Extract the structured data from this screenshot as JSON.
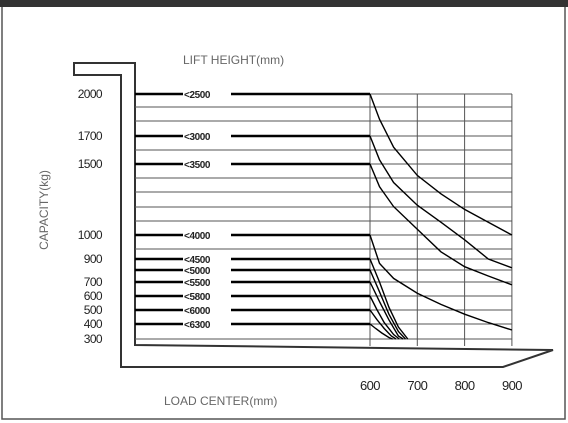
{
  "chart_data": {
    "type": "line",
    "title": "LIFT HEIGHT(mm)",
    "xlabel": "LOAD CENTER(mm)",
    "ylabel": "CAPACITY(kg)",
    "x_ticks": [
      "600",
      "700",
      "800",
      "900"
    ],
    "xlim": [
      600,
      900
    ],
    "y_ticks": [
      "2000",
      "1700",
      "1500",
      "1000",
      "900",
      "700",
      "600",
      "500",
      "400",
      "300"
    ],
    "ylim": [
      300,
      2000
    ],
    "grid": true,
    "series": [
      {
        "name": "<2500",
        "capacity": 2000,
        "x": [
          600,
          620,
          650,
          700,
          750,
          800,
          850,
          900
        ],
        "y": [
          2000,
          1820,
          1620,
          1420,
          1290,
          1180,
          1090,
          1000
        ]
      },
      {
        "name": "<3000",
        "capacity": 1700,
        "x": [
          600,
          620,
          650,
          700,
          750,
          800,
          850,
          900
        ],
        "y": [
          1700,
          1530,
          1370,
          1210,
          1090,
          980,
          900,
          820
        ]
      },
      {
        "name": "<3500",
        "capacity": 1500,
        "x": [
          600,
          620,
          650,
          700,
          750,
          800,
          850,
          900
        ],
        "y": [
          1500,
          1340,
          1200,
          1040,
          930,
          830,
          750,
          680
        ]
      },
      {
        "name": "<4000",
        "capacity": 1000,
        "x": [
          600,
          620,
          650,
          700,
          750,
          800,
          850,
          900
        ],
        "y": [
          1000,
          860,
          730,
          620,
          540,
          470,
          410,
          360
        ]
      },
      {
        "name": "<4500",
        "capacity": 900,
        "x": [
          600,
          620,
          640,
          660,
          680
        ],
        "y": [
          900,
          700,
          520,
          380,
          300
        ]
      },
      {
        "name": "<5000",
        "capacity": 800,
        "x": [
          600,
          620,
          640,
          660,
          675
        ],
        "y": [
          800,
          630,
          470,
          350,
          300
        ]
      },
      {
        "name": "<5500",
        "capacity": 700,
        "x": [
          600,
          620,
          640,
          660,
          670
        ],
        "y": [
          700,
          560,
          430,
          320,
          300
        ]
      },
      {
        "name": "<5800",
        "capacity": 600,
        "x": [
          600,
          615,
          630,
          650,
          662
        ],
        "y": [
          600,
          500,
          410,
          330,
          300
        ]
      },
      {
        "name": "<6000",
        "capacity": 500,
        "x": [
          600,
          615,
          630,
          645,
          655
        ],
        "y": [
          500,
          430,
          370,
          320,
          300
        ]
      },
      {
        "name": "<6300",
        "capacity": 400,
        "x": [
          600,
          612,
          625,
          640,
          648
        ],
        "y": [
          400,
          370,
          340,
          310,
          300
        ]
      }
    ]
  }
}
